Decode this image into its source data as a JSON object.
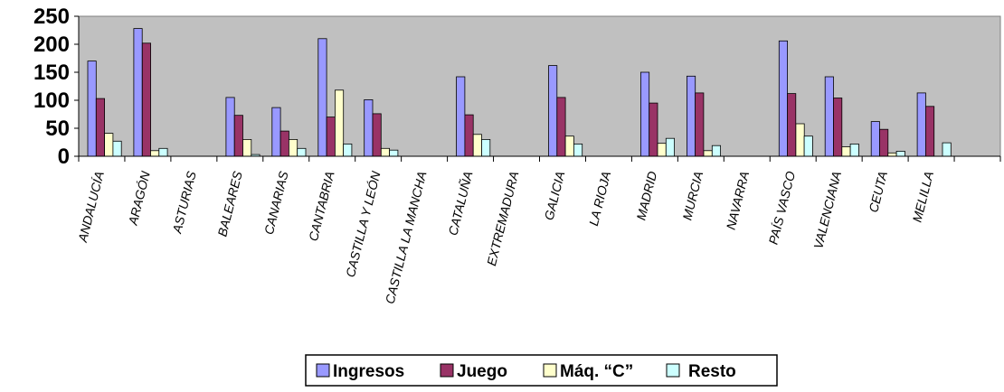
{
  "chart_data": {
    "type": "bar",
    "categories": [
      "ANDALUCÍA",
      "ARAGÓN",
      "ASTURIAS",
      "BALEARES",
      "CANARIAS",
      "CANTABRIA",
      "CASTILLA Y LEÓN",
      "CASTILLA LA MANCHA",
      "CATALUÑA",
      "EXTREMADURA",
      "GALICIA",
      "LA RIOJA",
      "MADRID",
      "MURCIA",
      "NAVARRA",
      "PAÍS VASCO",
      "VALENCIANA",
      "CEUTA",
      "MELILLA"
    ],
    "series": [
      {
        "name": "Ingresos",
        "color": "#9999ff",
        "values": [
          170,
          228,
          0,
          105,
          87,
          210,
          101,
          0,
          142,
          0,
          162,
          0,
          150,
          143,
          0,
          206,
          142,
          62,
          113
        ]
      },
      {
        "name": "Juego",
        "color": "#993366",
        "values": [
          103,
          202,
          0,
          73,
          45,
          70,
          76,
          0,
          74,
          0,
          105,
          0,
          95,
          113,
          0,
          112,
          104,
          48,
          89
        ]
      },
      {
        "name": "Máq. “C”",
        "color": "#ffffcc",
        "values": [
          41,
          10,
          0,
          30,
          30,
          118,
          14,
          0,
          39,
          0,
          36,
          0,
          23,
          10,
          0,
          58,
          17,
          6,
          0
        ]
      },
      {
        "name": "Resto",
        "color": "#ccffff",
        "values": [
          27,
          14,
          0,
          3,
          14,
          22,
          11,
          0,
          30,
          0,
          22,
          0,
          32,
          19,
          0,
          36,
          22,
          9,
          24
        ]
      }
    ],
    "y_ticks": [
      "0",
      "50",
      "100",
      "150",
      "200",
      "250"
    ],
    "ylim": [
      0,
      250
    ],
    "grid": false,
    "plot_background": "#c0c0c0",
    "legend_position": "bottom-center"
  }
}
